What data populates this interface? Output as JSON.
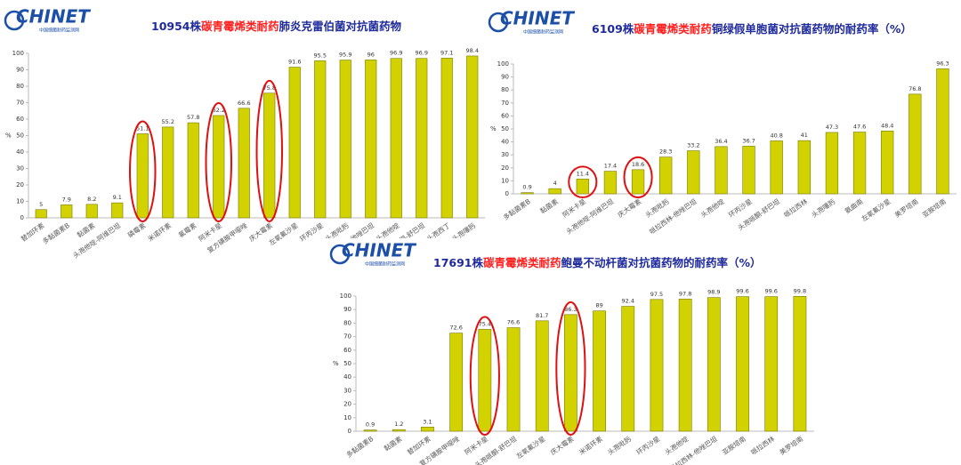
{
  "logo": {
    "name": "CHINET",
    "subtitle": "中国细菌耐药监测网"
  },
  "chart_data": [
    {
      "type": "bar",
      "title_parts": [
        "10954株",
        "碳青霉烯类耐药",
        "肺炎克雷伯菌对抗菌药物"
      ],
      "title_color": "#1f2a9c",
      "highlight_color": "#ff2020",
      "value_label_color": "#2a2ad0",
      "categories": [
        "替加环素",
        "多黏菌素B",
        "黏菌素",
        "头孢他啶-阿维巴坦",
        "磷霉素",
        "米诺环素",
        "氯霉素",
        "阿米卡星",
        "复方磺胺甲噁唑",
        "庆大霉素",
        "左氧氟沙星",
        "环丙沙星",
        "头孢吡肟",
        "哌拉西林-他唑巴坦",
        "头孢他啶",
        "头孢哌酮-舒巴坦",
        "头孢西丁",
        "头孢噻肟"
      ],
      "values": [
        5,
        7.9,
        8.2,
        9.1,
        51.1,
        55.2,
        57.8,
        62.2,
        66.6,
        75.8,
        91.6,
        95.5,
        95.9,
        96,
        96.9,
        96.9,
        97.1,
        98.4
      ],
      "color": "#d2d200",
      "ylim": [
        0,
        100
      ],
      "yticks": [
        0,
        10,
        20,
        30,
        40,
        50,
        60,
        70,
        80,
        90,
        100
      ],
      "ylabel": "%",
      "circled": [
        4,
        7,
        9
      ]
    },
    {
      "type": "bar",
      "title_parts": [
        "6109株",
        "碳青霉烯类耐药",
        "铜绿假单胞菌对抗菌药物的耐药率（%）"
      ],
      "title_color": "#1f2a9c",
      "highlight_color": "#ff2020",
      "value_label_color": "#555555",
      "categories": [
        "多黏菌素B",
        "黏菌素",
        "阿米卡星",
        "头孢他啶-阿维巴坦",
        "庆大霉素",
        "头孢吡肟",
        "哌拉西林-他唑巴坦",
        "头孢他啶",
        "环丙沙星",
        "头孢哌酮-舒巴坦",
        "哌拉西林",
        "头孢噻肟",
        "氨曲南",
        "左氧氟沙星",
        "美罗培南",
        "亚胺培南"
      ],
      "values": [
        0.9,
        4,
        11.4,
        17.4,
        18.6,
        28.3,
        33.2,
        36.4,
        36.7,
        40.8,
        41,
        47.3,
        47.6,
        48.4,
        76.8,
        96.3
      ],
      "color": "#d2d200",
      "ylim": [
        0,
        100
      ],
      "yticks": [
        0,
        10,
        20,
        30,
        40,
        50,
        60,
        70,
        80,
        90,
        100
      ],
      "ylabel": "%",
      "circled": [
        2,
        4
      ]
    },
    {
      "type": "bar",
      "title_parts": [
        "17691株",
        "碳青霉烯类耐药",
        "鲍曼不动杆菌对抗菌药物的耐药率（%）"
      ],
      "title_color": "#1f2a9c",
      "highlight_color": "#ff2020",
      "value_label_color": "#555555",
      "categories": [
        "多黏菌素B",
        "黏菌素",
        "替加环素",
        "复方磺胺甲噁唑",
        "阿米卡星",
        "头孢哌酮-舒巴坦",
        "左氧氟沙星",
        "庆大霉素",
        "米诺环素",
        "头孢吡肟",
        "环丙沙星",
        "头孢他啶",
        "哌拉西林-他唑巴坦",
        "亚胺培南",
        "哌拉西林",
        "美罗培南"
      ],
      "values": [
        0.9,
        1.2,
        3.1,
        72.6,
        75.4,
        76.6,
        81.7,
        86.3,
        89,
        92.4,
        97.5,
        97.8,
        98.9,
        99.6,
        99.6,
        99.8
      ],
      "color": "#d2d200",
      "ylim": [
        0,
        100
      ],
      "yticks": [
        0,
        10,
        20,
        30,
        40,
        50,
        60,
        70,
        80,
        90,
        100
      ],
      "ylabel": "%",
      "circled": [
        4,
        7
      ]
    }
  ]
}
